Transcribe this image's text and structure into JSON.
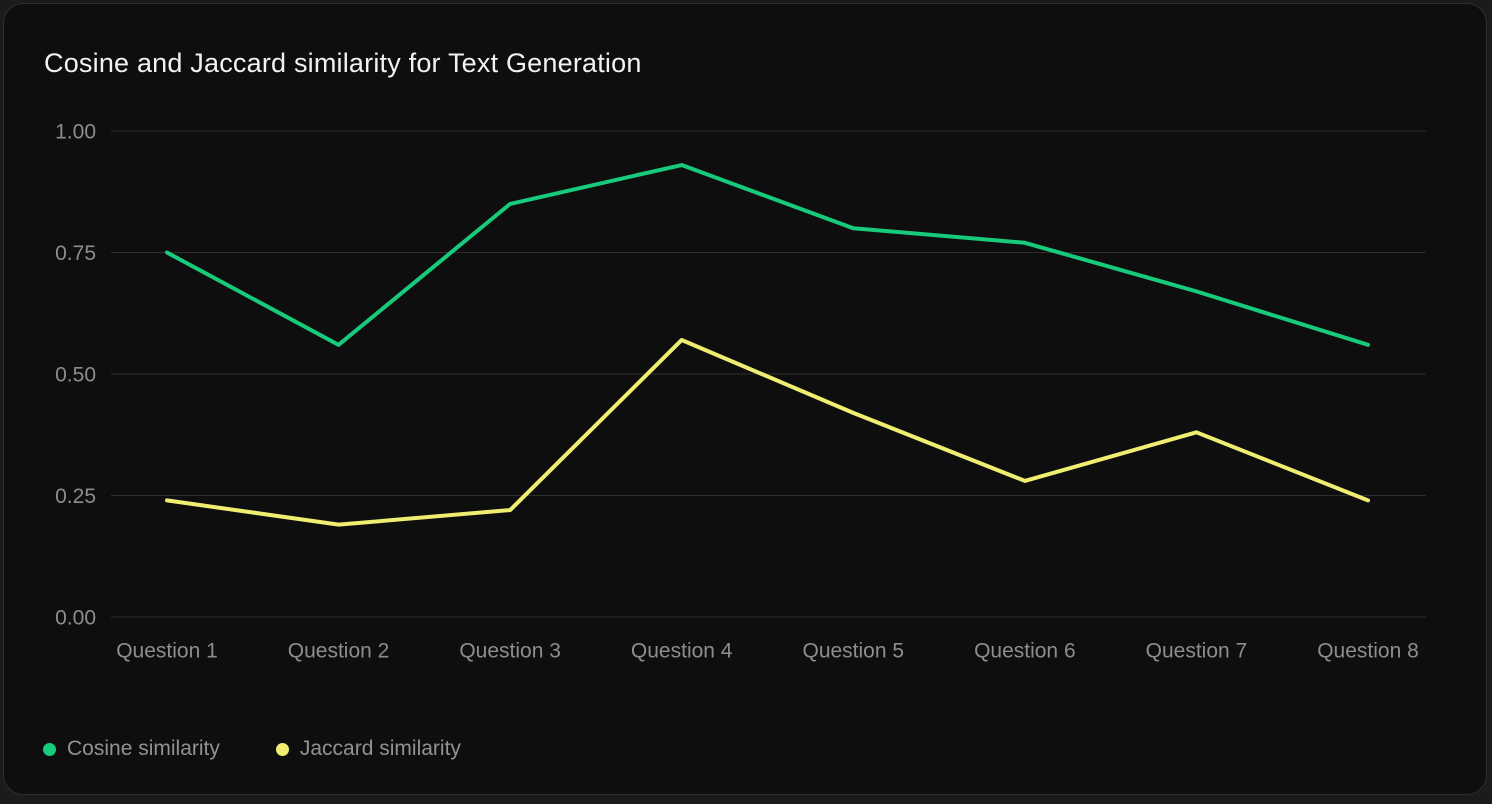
{
  "title": "Cosine and Jaccard similarity for Text Generation",
  "colors": {
    "page_bg": "#1b1b1b",
    "panel_bg": "#0e0e0e",
    "panel_border": "#2f2f2f",
    "grid": "#2d2d2d",
    "axis_text": "#8d8d8d",
    "title_text": "#f2f2f2",
    "legend_text": "#929292",
    "cosine": "#17ca7c",
    "jaccard": "#f0ee71"
  },
  "legend": [
    {
      "label": "Cosine similarity",
      "color": "#17ca7c"
    },
    {
      "label": "Jaccard similarity",
      "color": "#f0ee71"
    }
  ],
  "chart_data": {
    "type": "line",
    "title": "Cosine and Jaccard similarity for Text Generation",
    "categories": [
      "Question 1",
      "Question 2",
      "Question 3",
      "Question 4",
      "Question 5",
      "Question 6",
      "Question 7",
      "Question 8"
    ],
    "series": [
      {
        "name": "Cosine similarity",
        "color": "#17ca7c",
        "values": [
          0.75,
          0.56,
          0.85,
          0.93,
          0.8,
          0.77,
          0.67,
          0.56
        ]
      },
      {
        "name": "Jaccard similarity",
        "color": "#f0ee71",
        "values": [
          0.24,
          0.19,
          0.22,
          0.57,
          0.42,
          0.28,
          0.38,
          0.24
        ]
      }
    ],
    "xlabel": "",
    "ylabel": "",
    "ylim": [
      0,
      1
    ],
    "ytick_values": [
      1.0,
      0.75,
      0.5,
      0.25,
      0.0
    ],
    "ytick_labels": [
      "1.00",
      "0.75",
      "0.50",
      "0.25",
      "0.00"
    ],
    "grid": true,
    "legend_position": "bottom-left"
  }
}
